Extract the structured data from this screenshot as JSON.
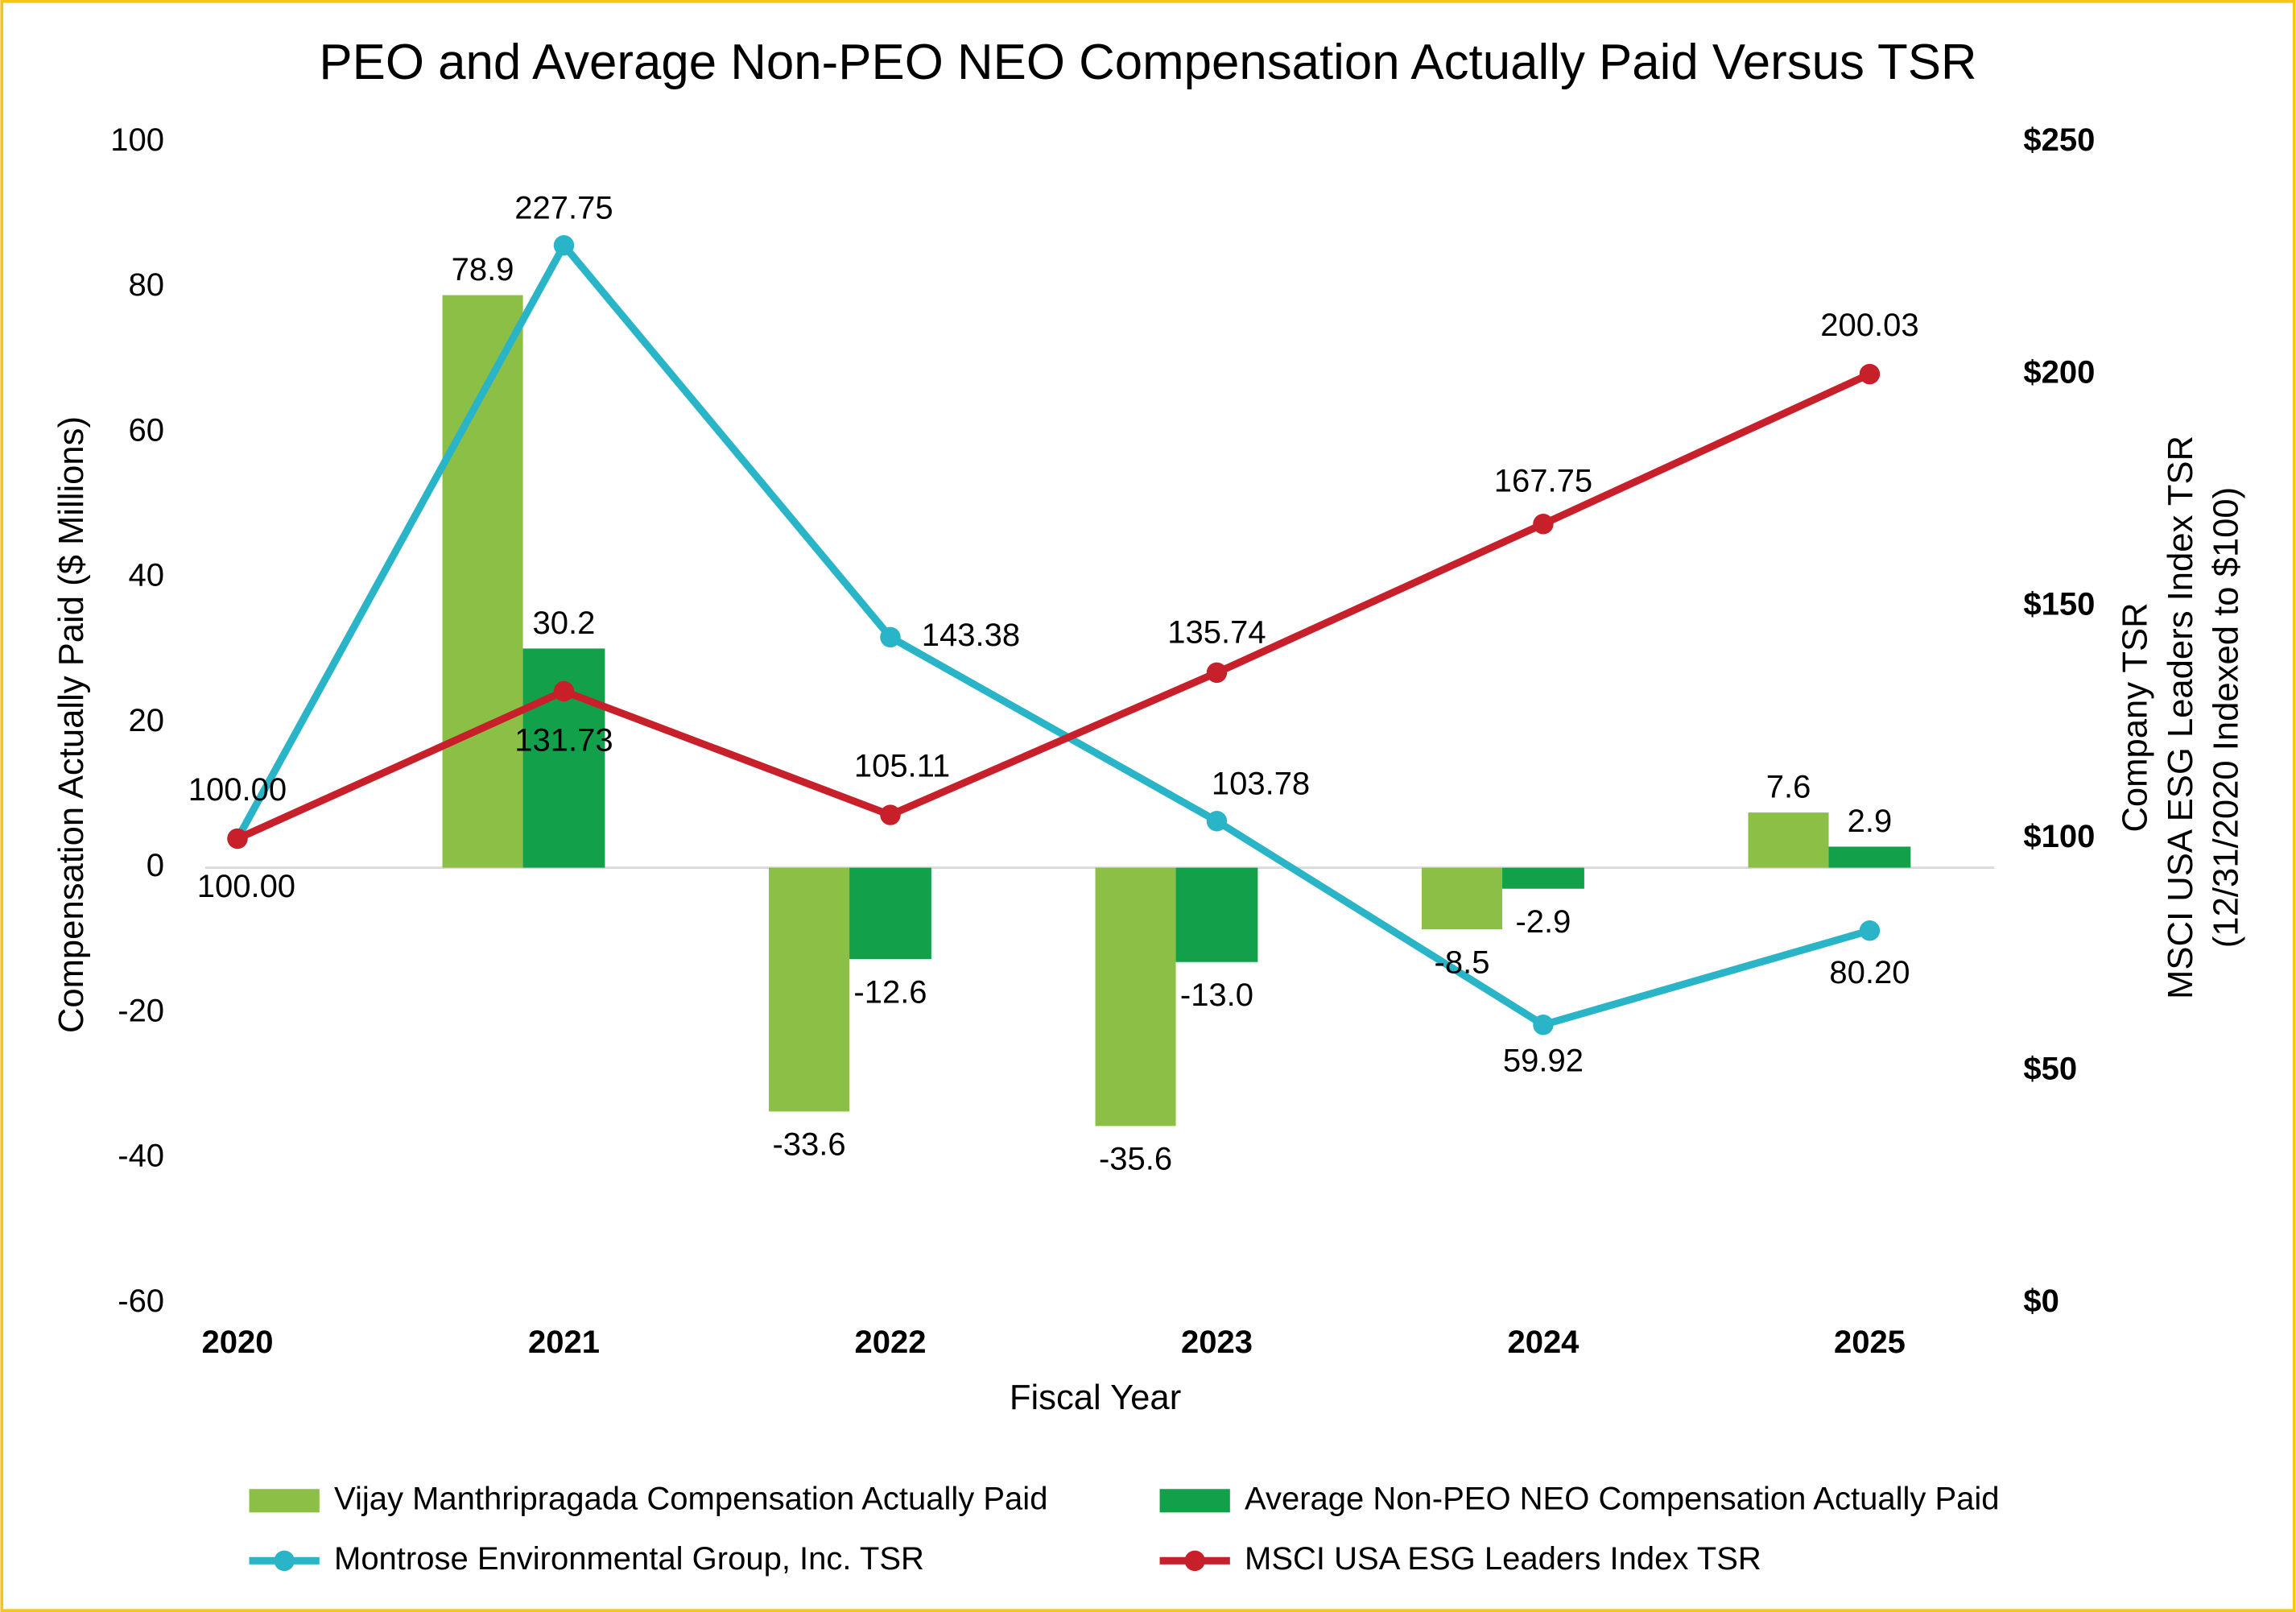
{
  "chart_data": {
    "type": "bar-line",
    "title": "PEO and Average Non-PEO NEO Compensation Actually Paid Versus TSR",
    "x_label": "Fiscal Year",
    "y_label": "Compensation Actually Paid ($ Millions)",
    "y2_label": [
      "Company TSR",
      "MSCI USA ESG Leaders Index TSR",
      "(12/31/2020 Indexed to $100)"
    ],
    "categories": [
      "2020",
      "2021",
      "2022",
      "2023",
      "2024",
      "2025"
    ],
    "ylim": [
      -60,
      100
    ],
    "yticks": [
      -60,
      -40,
      -20,
      0,
      20,
      40,
      60,
      80,
      100
    ],
    "y2lim": [
      0,
      250
    ],
    "y2ticks": [
      {
        "value": 0,
        "label": "$0"
      },
      {
        "value": 50,
        "label": "$50"
      },
      {
        "value": 100,
        "label": "$100"
      },
      {
        "value": 150,
        "label": "$150"
      },
      {
        "value": 200,
        "label": "$200"
      },
      {
        "value": 250,
        "label": "$250"
      }
    ],
    "series": [
      {
        "name": "Vijay Manthripragada Compensation Actually Paid",
        "type": "bar",
        "color": "#8cbf45",
        "values": [
          null,
          78.9,
          -33.6,
          -35.6,
          -8.5,
          7.6
        ]
      },
      {
        "name": "Average Non-PEO NEO Compensation Actually Paid",
        "type": "bar",
        "color": "#13a04a",
        "values": [
          null,
          30.2,
          -12.6,
          -13.0,
          -2.9,
          2.9
        ],
        "value_labels": [
          null,
          "30.2",
          "-12.6",
          "-13.0",
          "-2.9",
          "2.9"
        ]
      },
      {
        "name": "Montrose Environmental Group, Inc. TSR",
        "type": "line",
        "axis": "y2",
        "color": "#2ab4c8",
        "values": [
          100,
          227.75,
          143.38,
          103.78,
          59.92,
          80.2
        ],
        "value_labels": [
          "100.00",
          "227.75",
          "143.38",
          "103.78",
          "59.92",
          "80.20"
        ]
      },
      {
        "name": "MSCI USA ESG Leaders Index TSR",
        "type": "line",
        "axis": "y2",
        "color": "#c8202b",
        "values": [
          100,
          131.73,
          105.11,
          135.74,
          167.75,
          200.03
        ],
        "value_labels": [
          "100.00",
          "131.73",
          "105.11",
          "135.74",
          "167.75",
          "200.03"
        ]
      }
    ]
  }
}
